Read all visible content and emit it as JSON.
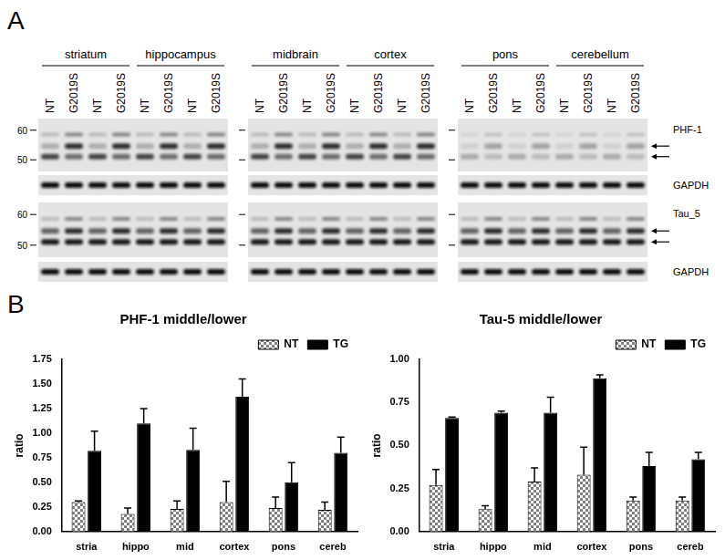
{
  "figure": {
    "panel_labels": [
      "A",
      "B"
    ],
    "blot": {
      "groups": [
        {
          "label": "striatum",
          "lanes": [
            "NT",
            "G2019S",
            "NT",
            "G2019S"
          ]
        },
        {
          "label": "hippocampus",
          "lanes": [
            "NT",
            "G2019S",
            "NT",
            "G2019S"
          ]
        },
        {
          "label": "midbrain",
          "lanes": [
            "NT",
            "G2019S",
            "NT",
            "G2019S"
          ]
        },
        {
          "label": "cortex",
          "lanes": [
            "NT",
            "G2019S",
            "NT",
            "G2019S"
          ]
        },
        {
          "label": "pons",
          "lanes": [
            "NT",
            "G2019S",
            "NT",
            "G2019S"
          ]
        },
        {
          "label": "cerebellum",
          "lanes": [
            "NT",
            "G2019S",
            "NT",
            "G2019S"
          ]
        }
      ],
      "markers": [
        60,
        50
      ],
      "rows": [
        "PHF-1",
        "GAPDH",
        "Tau_5",
        "GAPDH"
      ]
    }
  },
  "chart_data": [
    {
      "type": "bar",
      "title": "PHF-1 middle/lower",
      "y_label": "ratio",
      "categories": [
        "stria",
        "hippo",
        "mid",
        "cortex",
        "pons",
        "cereb"
      ],
      "series": [
        {
          "name": "NT",
          "color": "#808080",
          "values": [
            0.3,
            0.18,
            0.23,
            0.3,
            0.24,
            0.22
          ],
          "errors": [
            0.01,
            0.06,
            0.08,
            0.21,
            0.11,
            0.08
          ]
        },
        {
          "name": "TG",
          "color": "#000000",
          "values": [
            0.82,
            1.1,
            0.83,
            1.37,
            0.5,
            0.8
          ],
          "errors": [
            0.2,
            0.15,
            0.22,
            0.18,
            0.2,
            0.16
          ]
        }
      ],
      "ylim": [
        0,
        1.75
      ],
      "yticks": [
        {
          "value": 0,
          "label": "0.00"
        },
        {
          "value": 0.25,
          "label": "0.25"
        },
        {
          "value": 0.5,
          "label": "0.50"
        },
        {
          "value": 0.75,
          "label": "0.75"
        },
        {
          "value": 1,
          "label": "1.00"
        },
        {
          "value": 1.25,
          "label": "1.25"
        },
        {
          "value": 1.5,
          "label": "1.50"
        },
        {
          "value": 1.75,
          "label": "1.75"
        }
      ],
      "grid": false,
      "legend": "top-right"
    },
    {
      "type": "bar",
      "title": "Tau-5 middle/lower",
      "y_label": "ratio",
      "categories": [
        "stria",
        "hippo",
        "mid",
        "cortex",
        "pons",
        "cereb"
      ],
      "series": [
        {
          "name": "NT",
          "color": "#808080",
          "values": [
            0.27,
            0.13,
            0.29,
            0.33,
            0.18,
            0.18
          ],
          "errors": [
            0.09,
            0.02,
            0.08,
            0.16,
            0.02,
            0.02
          ]
        },
        {
          "name": "TG",
          "color": "#000000",
          "values": [
            0.66,
            0.69,
            0.69,
            0.89,
            0.38,
            0.42
          ],
          "errors": [
            0.005,
            0.01,
            0.09,
            0.02,
            0.08,
            0.04
          ]
        }
      ],
      "ylim": [
        0,
        1
      ],
      "yticks": [
        {
          "value": 0,
          "label": "0.00"
        },
        {
          "value": 0.25,
          "label": "0.25"
        },
        {
          "value": 0.5,
          "label": "0.50"
        },
        {
          "value": 0.75,
          "label": "0.75"
        },
        {
          "value": 1,
          "label": "1.00"
        }
      ],
      "grid": false,
      "legend": "top-right"
    }
  ]
}
